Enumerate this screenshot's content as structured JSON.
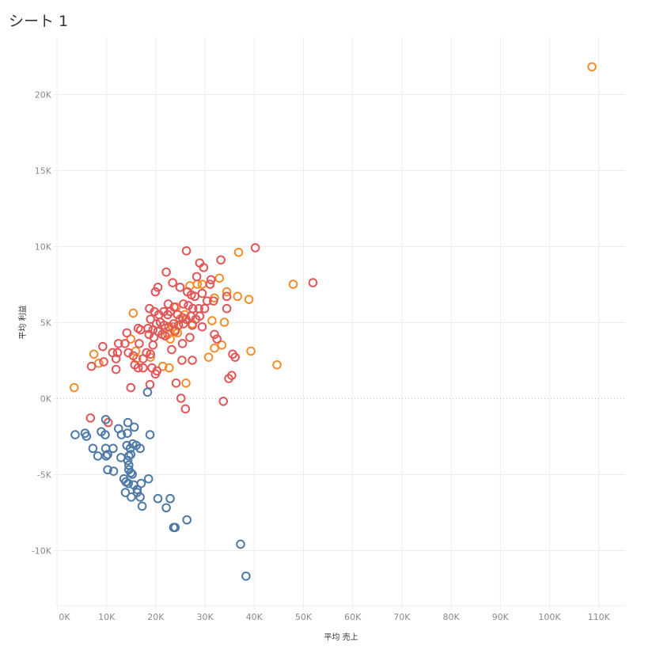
{
  "sheet_title": "シート 1",
  "colors": {
    "blue": "#4e79a7",
    "red": "#e15759",
    "orange": "#f28e2b",
    "grid": "#eeeeee",
    "zero_line": "#c0c0c0"
  },
  "chart_data": {
    "type": "scatter",
    "title": "シート 1",
    "xlabel": "平均 売上",
    "ylabel": "平均 利益",
    "xlim": [
      -1500,
      115000
    ],
    "ylim": [
      -13800,
      23500
    ],
    "grid": true,
    "x_ticks": [
      {
        "value": 0,
        "label": "0K"
      },
      {
        "value": 10000,
        "label": "10K"
      },
      {
        "value": 20000,
        "label": "20K"
      },
      {
        "value": 30000,
        "label": "30K"
      },
      {
        "value": 40000,
        "label": "40K"
      },
      {
        "value": 50000,
        "label": "50K"
      },
      {
        "value": 60000,
        "label": "60K"
      },
      {
        "value": 70000,
        "label": "70K"
      },
      {
        "value": 80000,
        "label": "80K"
      },
      {
        "value": 90000,
        "label": "90K"
      },
      {
        "value": 100000,
        "label": "100K"
      },
      {
        "value": 110000,
        "label": "110K"
      }
    ],
    "y_ticks": [
      {
        "value": 20000,
        "label": "20K"
      },
      {
        "value": 15000,
        "label": "15K"
      },
      {
        "value": 10000,
        "label": "10K"
      },
      {
        "value": 5000,
        "label": "5K"
      },
      {
        "value": 0,
        "label": "0K"
      },
      {
        "value": -5000,
        "label": "-5K"
      },
      {
        "value": -10000,
        "label": "-10K"
      }
    ],
    "series": [
      {
        "name": "orange",
        "color": "#f28e2b",
        "points": [
          [
            108700,
            21800
          ],
          [
            3500,
            700
          ],
          [
            7500,
            2900
          ],
          [
            8500,
            2300
          ],
          [
            15500,
            5600
          ],
          [
            15000,
            3900
          ],
          [
            16000,
            3100
          ],
          [
            16200,
            2600
          ],
          [
            19000,
            2700
          ],
          [
            21500,
            2100
          ],
          [
            22800,
            2000
          ],
          [
            23000,
            3900
          ],
          [
            22500,
            4200
          ],
          [
            22000,
            4600
          ],
          [
            23500,
            4700
          ],
          [
            24000,
            4500
          ],
          [
            24500,
            4300
          ],
          [
            25000,
            5200
          ],
          [
            26200,
            1000
          ],
          [
            27500,
            4900
          ],
          [
            27000,
            7400
          ],
          [
            28500,
            7500
          ],
          [
            29500,
            7500
          ],
          [
            33000,
            7900
          ],
          [
            34500,
            7000
          ],
          [
            36900,
            9600
          ],
          [
            32000,
            6600
          ],
          [
            31500,
            5100
          ],
          [
            34000,
            5000
          ],
          [
            33500,
            3500
          ],
          [
            32000,
            3300
          ],
          [
            30800,
            2700
          ],
          [
            36700,
            6700
          ],
          [
            39000,
            6500
          ],
          [
            39400,
            3100
          ],
          [
            44700,
            2200
          ],
          [
            48000,
            7500
          ],
          [
            26000,
            5500
          ],
          [
            24200,
            6000
          ]
        ]
      },
      {
        "name": "red",
        "color": "#e15759",
        "points": [
          [
            26300,
            9700
          ],
          [
            29000,
            8900
          ],
          [
            29800,
            8600
          ],
          [
            33300,
            9100
          ],
          [
            40300,
            9900
          ],
          [
            22200,
            8300
          ],
          [
            23500,
            7600
          ],
          [
            28400,
            8000
          ],
          [
            31300,
            7800
          ],
          [
            31100,
            7500
          ],
          [
            20500,
            7300
          ],
          [
            20000,
            7000
          ],
          [
            25000,
            7300
          ],
          [
            26500,
            7000
          ],
          [
            27300,
            6800
          ],
          [
            28000,
            6700
          ],
          [
            29500,
            6900
          ],
          [
            30500,
            6400
          ],
          [
            31800,
            6400
          ],
          [
            34500,
            6700
          ],
          [
            52000,
            7600
          ],
          [
            22600,
            6200
          ],
          [
            23800,
            6000
          ],
          [
            25700,
            6200
          ],
          [
            26700,
            6100
          ],
          [
            27600,
            5900
          ],
          [
            28800,
            5900
          ],
          [
            30000,
            5900
          ],
          [
            34500,
            5900
          ],
          [
            18800,
            5900
          ],
          [
            19800,
            5700
          ],
          [
            20700,
            5500
          ],
          [
            21700,
            5700
          ],
          [
            22500,
            5500
          ],
          [
            23000,
            5700
          ],
          [
            24500,
            5500
          ],
          [
            25500,
            5300
          ],
          [
            26200,
            5200
          ],
          [
            27200,
            5400
          ],
          [
            28200,
            5200
          ],
          [
            29000,
            5400
          ],
          [
            19000,
            5200
          ],
          [
            20200,
            4900
          ],
          [
            21000,
            5000
          ],
          [
            21800,
            4800
          ],
          [
            22700,
            4700
          ],
          [
            23700,
            4900
          ],
          [
            24700,
            4800
          ],
          [
            25700,
            4900
          ],
          [
            27500,
            4800
          ],
          [
            29500,
            4700
          ],
          [
            18500,
            4600
          ],
          [
            19500,
            4500
          ],
          [
            20500,
            4400
          ],
          [
            21400,
            4200
          ],
          [
            16500,
            4600
          ],
          [
            17000,
            4500
          ],
          [
            14200,
            4300
          ],
          [
            18700,
            4200
          ],
          [
            19700,
            4000
          ],
          [
            22000,
            4100
          ],
          [
            24000,
            4400
          ],
          [
            27000,
            4000
          ],
          [
            32000,
            4200
          ],
          [
            32500,
            3900
          ],
          [
            12500,
            3600
          ],
          [
            13800,
            3600
          ],
          [
            16700,
            3600
          ],
          [
            19500,
            3500
          ],
          [
            25500,
            3600
          ],
          [
            23300,
            3200
          ],
          [
            9300,
            3400
          ],
          [
            11300,
            3000
          ],
          [
            12300,
            3000
          ],
          [
            14500,
            3000
          ],
          [
            15500,
            2800
          ],
          [
            17500,
            2600
          ],
          [
            18200,
            3000
          ],
          [
            19000,
            2900
          ],
          [
            12000,
            2600
          ],
          [
            15800,
            2200
          ],
          [
            16500,
            2000
          ],
          [
            17500,
            2000
          ],
          [
            19300,
            2000
          ],
          [
            20300,
            1800
          ],
          [
            25400,
            2500
          ],
          [
            27500,
            2500
          ],
          [
            20000,
            1600
          ],
          [
            9500,
            2400
          ],
          [
            7000,
            2100
          ],
          [
            12000,
            1900
          ],
          [
            36200,
            2700
          ],
          [
            35700,
            2900
          ],
          [
            35500,
            1500
          ],
          [
            34900,
            1300
          ],
          [
            18900,
            900
          ],
          [
            24200,
            1000
          ],
          [
            15000,
            700
          ],
          [
            25200,
            0
          ],
          [
            33800,
            -200
          ],
          [
            26100,
            -700
          ],
          [
            6800,
            -1300
          ],
          [
            10400,
            -1600
          ]
        ]
      },
      {
        "name": "blue",
        "color": "#4e79a7",
        "points": [
          [
            18400,
            400
          ],
          [
            9900,
            -1400
          ],
          [
            14400,
            -1600
          ],
          [
            15700,
            -1900
          ],
          [
            12500,
            -2000
          ],
          [
            3700,
            -2400
          ],
          [
            5700,
            -2300
          ],
          [
            6000,
            -2500
          ],
          [
            9000,
            -2200
          ],
          [
            9800,
            -2400
          ],
          [
            14300,
            -2300
          ],
          [
            18900,
            -2400
          ],
          [
            13100,
            -2400
          ],
          [
            7300,
            -3300
          ],
          [
            9900,
            -3300
          ],
          [
            11400,
            -3300
          ],
          [
            14200,
            -3100
          ],
          [
            14900,
            -3300
          ],
          [
            15400,
            -3000
          ],
          [
            16100,
            -3100
          ],
          [
            16900,
            -3300
          ],
          [
            8300,
            -3800
          ],
          [
            10000,
            -3800
          ],
          [
            10300,
            -3700
          ],
          [
            13000,
            -3900
          ],
          [
            14600,
            -3800
          ],
          [
            15000,
            -3700
          ],
          [
            14400,
            -4100
          ],
          [
            14600,
            -4400
          ],
          [
            14600,
            -4700
          ],
          [
            15000,
            -4900
          ],
          [
            15300,
            -5000
          ],
          [
            10300,
            -4700
          ],
          [
            11500,
            -4800
          ],
          [
            13600,
            -5300
          ],
          [
            14000,
            -5500
          ],
          [
            14500,
            -5600
          ],
          [
            15600,
            -5700
          ],
          [
            16300,
            -6000
          ],
          [
            17100,
            -5600
          ],
          [
            18600,
            -5300
          ],
          [
            13900,
            -6200
          ],
          [
            15100,
            -6500
          ],
          [
            16300,
            -6200
          ],
          [
            16900,
            -6500
          ],
          [
            17300,
            -7100
          ],
          [
            20500,
            -6600
          ],
          [
            23000,
            -6600
          ],
          [
            22200,
            -7200
          ],
          [
            26400,
            -8000
          ],
          [
            23700,
            -8500
          ],
          [
            24000,
            -8500
          ],
          [
            37300,
            -9600
          ],
          [
            38400,
            -11700
          ]
        ]
      }
    ]
  }
}
